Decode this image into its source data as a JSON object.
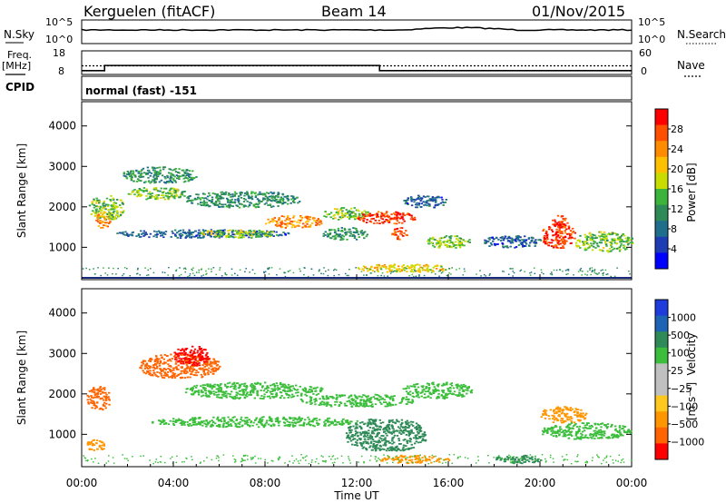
{
  "header": {
    "station": "Kerguelen (fitACF)",
    "beam": "Beam 14",
    "date": "01/Nov/2015"
  },
  "noise_panel": {
    "left_label": "N.Sky",
    "right_label": "N.Search",
    "ticks_left": [
      "10^5",
      "10^0"
    ],
    "ticks_right": [
      "10^5",
      "10^0"
    ]
  },
  "freq_panel": {
    "label_line1": "Freq.",
    "label_line2": "[MHz]",
    "right_label": "Nave",
    "ticks_left": [
      "18",
      "8"
    ],
    "ticks_right": [
      "60",
      "0"
    ],
    "freq_steps": [
      {
        "t": 0,
        "mhz": 9.6
      },
      {
        "t": 1.0,
        "mhz": 11.8
      },
      {
        "t": 13.0,
        "mhz": 9.6
      },
      {
        "t": 24.0,
        "mhz": 9.6
      }
    ],
    "nave_dotted_value": 22
  },
  "cpid": {
    "label": "CPID",
    "mode_text": "normal (fast) -151"
  },
  "power_panel": {
    "ylabel": "Slant Range [km]",
    "yticks": [
      "4000",
      "3000",
      "2000",
      "1000"
    ],
    "colorbar_label": "Power [dB]",
    "colorbar_ticks": [
      "28",
      "24",
      "20",
      "16",
      "12",
      "8",
      "4"
    ],
    "colorbar_colors": [
      "#ff0000",
      "#ff5000",
      "#ff8c00",
      "#ffc000",
      "#c8dc00",
      "#3cb43c",
      "#2e8b57",
      "#1e6e8c",
      "#1e3cb4",
      "#0000ff"
    ]
  },
  "velocity_panel": {
    "ylabel": "Slant Range [km]",
    "yticks": [
      "4000",
      "3000",
      "2000",
      "1000"
    ],
    "colorbar_label": "Velocity",
    "colorbar_unit": "[m s⁻¹]",
    "colorbar_ticks": [
      "1000",
      "500",
      "100",
      "25",
      "−25",
      "−100",
      "−500",
      "−1000"
    ],
    "colorbar_colors": [
      "#1e3cdc",
      "#1e64b4",
      "#2e8b57",
      "#3cbe3c",
      "#c0c0c0",
      "#c0c0c0",
      "#ffc81e",
      "#ff9600",
      "#ff6400",
      "#ff0000"
    ]
  },
  "time_axis": {
    "label": "Time UT",
    "ticks": [
      "00:00",
      "04:00",
      "08:00",
      "12:00",
      "16:00",
      "20:00",
      "00:00"
    ]
  },
  "chart_data": {
    "type": "heatmap",
    "x_range_hours": [
      0,
      24
    ],
    "y_range_km": [
      200,
      4600
    ],
    "power_blobs": [
      {
        "t0": 0.3,
        "t1": 1.8,
        "r0": 1700,
        "r1": 2300,
        "db": 16
      },
      {
        "t0": 0.6,
        "t1": 1.2,
        "r0": 1500,
        "r1": 1900,
        "db": 24
      },
      {
        "t0": 1.8,
        "t1": 5.0,
        "r0": 2600,
        "r1": 3000,
        "db": 12
      },
      {
        "t0": 2.0,
        "t1": 4.5,
        "r0": 2200,
        "r1": 2500,
        "db": 16
      },
      {
        "t0": 4.5,
        "t1": 9.5,
        "r0": 2000,
        "r1": 2400,
        "db": 12
      },
      {
        "t0": 8.0,
        "t1": 10.5,
        "r0": 1500,
        "r1": 1800,
        "db": 24
      },
      {
        "t0": 10.5,
        "t1": 12.5,
        "r0": 1700,
        "r1": 2000,
        "db": 16
      },
      {
        "t0": 12.0,
        "t1": 14.5,
        "r0": 1600,
        "r1": 1900,
        "db": 28
      },
      {
        "t0": 13.5,
        "t1": 14.2,
        "r0": 1200,
        "r1": 1500,
        "db": 28
      },
      {
        "t0": 1.5,
        "t1": 9.0,
        "r0": 1250,
        "r1": 1450,
        "db": 8
      },
      {
        "t0": 5.0,
        "t1": 8.5,
        "r0": 1250,
        "r1": 1450,
        "db": 16
      },
      {
        "t0": 10.5,
        "t1": 12.5,
        "r0": 1200,
        "r1": 1500,
        "db": 12
      },
      {
        "t0": 12.0,
        "t1": 16.0,
        "r0": 400,
        "r1": 600,
        "db": 20
      },
      {
        "t0": 14.0,
        "t1": 16.0,
        "r0": 2000,
        "r1": 2300,
        "db": 8
      },
      {
        "t0": 15.0,
        "t1": 17.0,
        "r0": 1000,
        "r1": 1300,
        "db": 16
      },
      {
        "t0": 17.5,
        "t1": 20.0,
        "r0": 1000,
        "r1": 1300,
        "db": 8
      },
      {
        "t0": 20.0,
        "t1": 21.5,
        "r0": 1000,
        "r1": 1600,
        "db": 28
      },
      {
        "t0": 20.5,
        "t1": 21.2,
        "r0": 1500,
        "r1": 1800,
        "db": 28
      },
      {
        "t0": 21.5,
        "t1": 24.0,
        "r0": 900,
        "r1": 1400,
        "db": 16
      }
    ],
    "velocity_blobs": [
      {
        "t0": 0.2,
        "t1": 1.2,
        "r0": 1600,
        "r1": 2200,
        "v": -500
      },
      {
        "t0": 0.2,
        "t1": 1.0,
        "r0": 600,
        "r1": 900,
        "v": -100
      },
      {
        "t0": 2.5,
        "t1": 6.0,
        "r0": 2400,
        "r1": 3000,
        "v": -500
      },
      {
        "t0": 4.0,
        "t1": 5.5,
        "r0": 2700,
        "r1": 3200,
        "v": -1000
      },
      {
        "t0": 4.5,
        "t1": 10.5,
        "r0": 1900,
        "r1": 2300,
        "v": 25
      },
      {
        "t0": 9.5,
        "t1": 14.5,
        "r0": 1700,
        "r1": 2000,
        "v": 25
      },
      {
        "t0": 3.0,
        "t1": 12.0,
        "r0": 1200,
        "r1": 1450,
        "v": 25
      },
      {
        "t0": 11.5,
        "t1": 15.0,
        "r0": 600,
        "r1": 1400,
        "v": 100
      },
      {
        "t0": 14.0,
        "t1": 17.0,
        "r0": 1900,
        "r1": 2300,
        "v": 25
      },
      {
        "t0": 13.0,
        "t1": 16.0,
        "r0": 300,
        "r1": 500,
        "v": -100
      },
      {
        "t0": 18.0,
        "t1": 20.0,
        "r0": 300,
        "r1": 500,
        "v": 100
      },
      {
        "t0": 20.0,
        "t1": 22.0,
        "r0": 1300,
        "r1": 1700,
        "v": -100
      },
      {
        "t0": 20.0,
        "t1": 24.0,
        "r0": 900,
        "r1": 1300,
        "v": 25
      }
    ]
  }
}
